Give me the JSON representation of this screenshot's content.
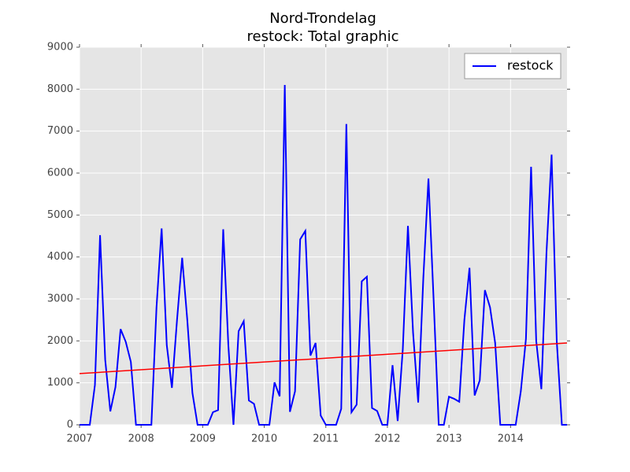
{
  "chart_data": {
    "type": "line",
    "title": "Nord-Trondelag",
    "subtitle": "restock: Total graphic",
    "x": [
      "2007-01",
      "2007-02",
      "2007-03",
      "2007-04",
      "2007-05",
      "2007-06",
      "2007-07",
      "2007-08",
      "2007-09",
      "2007-10",
      "2007-11",
      "2007-12",
      "2008-01",
      "2008-02",
      "2008-03",
      "2008-04",
      "2008-05",
      "2008-06",
      "2008-07",
      "2008-08",
      "2008-09",
      "2008-10",
      "2008-11",
      "2008-12",
      "2009-01",
      "2009-02",
      "2009-03",
      "2009-04",
      "2009-05",
      "2009-06",
      "2009-07",
      "2009-08",
      "2009-09",
      "2009-10",
      "2009-11",
      "2009-12",
      "2010-01",
      "2010-02",
      "2010-03",
      "2010-04",
      "2010-05",
      "2010-06",
      "2010-07",
      "2010-08",
      "2010-09",
      "2010-10",
      "2010-11",
      "2010-12",
      "2011-01",
      "2011-02",
      "2011-03",
      "2011-04",
      "2011-05",
      "2011-06",
      "2011-07",
      "2011-08",
      "2011-09",
      "2011-10",
      "2011-11",
      "2011-12",
      "2012-01",
      "2012-02",
      "2012-03",
      "2012-04",
      "2012-05",
      "2012-06",
      "2012-07",
      "2012-08",
      "2012-09",
      "2012-10",
      "2012-11",
      "2012-12",
      "2013-01",
      "2013-02",
      "2013-03",
      "2013-04",
      "2013-05",
      "2013-06",
      "2013-07",
      "2013-08",
      "2013-09",
      "2013-10",
      "2013-11",
      "2013-12",
      "2014-01",
      "2014-02",
      "2014-03",
      "2014-04",
      "2014-05",
      "2014-06",
      "2014-07",
      "2014-08",
      "2014-09",
      "2014-10",
      "2014-11",
      "2014-12"
    ],
    "series": [
      {
        "name": "restock",
        "color": "#0000ff",
        "values": [
          0,
          0,
          0,
          950,
          4520,
          1550,
          320,
          900,
          2280,
          1980,
          1500,
          0,
          0,
          0,
          0,
          2800,
          4680,
          1900,
          880,
          2500,
          3980,
          2500,
          760,
          0,
          0,
          0,
          300,
          350,
          4660,
          1900,
          0,
          2230,
          2470,
          580,
          500,
          0,
          0,
          0,
          1010,
          680,
          8100,
          310,
          800,
          4420,
          4620,
          1650,
          1950,
          220,
          0,
          0,
          0,
          380,
          7170,
          300,
          480,
          3420,
          3530,
          400,
          330,
          0,
          0,
          1420,
          90,
          1800,
          4740,
          2200,
          530,
          3500,
          5870,
          3000,
          0,
          0,
          670,
          620,
          550,
          2500,
          3740,
          700,
          1060,
          3210,
          2800,
          1950,
          0,
          0,
          0,
          0,
          800,
          2050,
          6150,
          2000,
          850,
          4100,
          6440,
          2000,
          0,
          0
        ]
      }
    ],
    "trend": {
      "color": "#ff0000",
      "x": [
        "2007-01",
        "2014-12"
      ],
      "values": [
        1220,
        1950
      ]
    },
    "xlim": [
      "2007-01",
      "2014-12"
    ],
    "xticks": [
      2007,
      2008,
      2009,
      2010,
      2011,
      2012,
      2013,
      2014
    ],
    "ylim": [
      0,
      9000
    ],
    "yticks": [
      0,
      1000,
      2000,
      3000,
      4000,
      5000,
      6000,
      7000,
      8000,
      9000
    ],
    "grid": true,
    "legend": "upper right"
  }
}
